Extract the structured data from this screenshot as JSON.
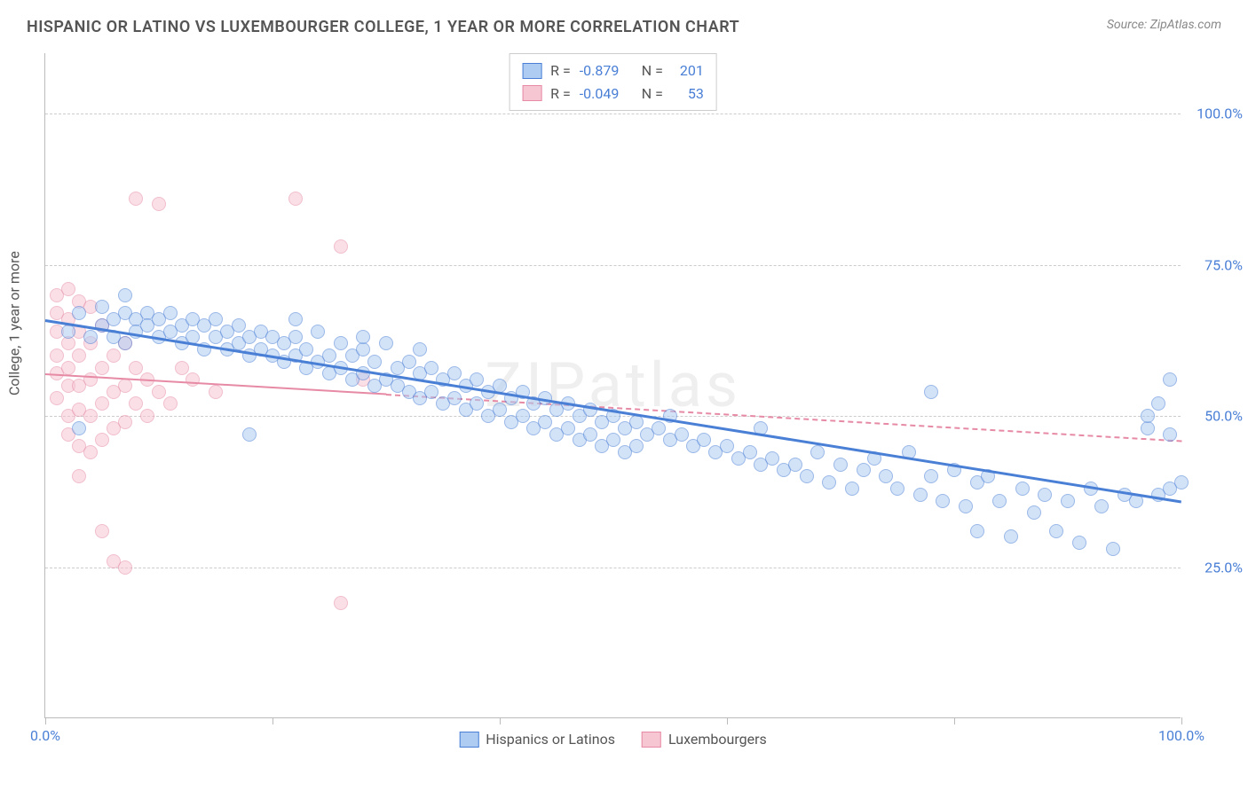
{
  "title": "HISPANIC OR LATINO VS LUXEMBOURGER COLLEGE, 1 YEAR OR MORE CORRELATION CHART",
  "source": "Source: ZipAtlas.com",
  "watermark": "ZIPatlas",
  "ylabel": "College, 1 year or more",
  "chart": {
    "type": "scatter",
    "xlim": [
      0,
      100
    ],
    "ylim": [
      0,
      110
    ],
    "yticks": [
      {
        "v": 25,
        "label": "25.0%"
      },
      {
        "v": 50,
        "label": "50.0%"
      },
      {
        "v": 75,
        "label": "75.0%"
      },
      {
        "v": 100,
        "label": "100.0%"
      }
    ],
    "xticks": [
      0,
      20,
      40,
      60,
      80,
      100
    ],
    "xaxis_labels": [
      {
        "v": 0,
        "label": "0.0%"
      },
      {
        "v": 100,
        "label": "100.0%"
      }
    ],
    "grid_color": "#cccccc",
    "background_color": "#ffffff",
    "point_radius": 8,
    "point_opacity": 0.55,
    "series": [
      {
        "name": "Hispanics or Latinos",
        "color_fill": "#aeccf2",
        "color_stroke": "#4a7fd6",
        "R": "-0.879",
        "N": "201",
        "trend": {
          "x1": 0,
          "y1": 66,
          "x2": 100,
          "y2": 36,
          "solid_until_x": 100,
          "width": 3
        },
        "points": [
          [
            2,
            64
          ],
          [
            3,
            67
          ],
          [
            4,
            63
          ],
          [
            5,
            68
          ],
          [
            5,
            65
          ],
          [
            6,
            66
          ],
          [
            6,
            63
          ],
          [
            7,
            67
          ],
          [
            7,
            62
          ],
          [
            8,
            66
          ],
          [
            8,
            64
          ],
          [
            9,
            67
          ],
          [
            9,
            65
          ],
          [
            10,
            66
          ],
          [
            10,
            63
          ],
          [
            11,
            67
          ],
          [
            11,
            64
          ],
          [
            12,
            65
          ],
          [
            12,
            62
          ],
          [
            13,
            66
          ],
          [
            13,
            63
          ],
          [
            14,
            65
          ],
          [
            14,
            61
          ],
          [
            15,
            66
          ],
          [
            15,
            63
          ],
          [
            16,
            64
          ],
          [
            16,
            61
          ],
          [
            17,
            65
          ],
          [
            17,
            62
          ],
          [
            18,
            63
          ],
          [
            18,
            60
          ],
          [
            19,
            64
          ],
          [
            19,
            61
          ],
          [
            20,
            63
          ],
          [
            20,
            60
          ],
          [
            21,
            62
          ],
          [
            21,
            59
          ],
          [
            22,
            63
          ],
          [
            22,
            60
          ],
          [
            23,
            61
          ],
          [
            23,
            58
          ],
          [
            24,
            64
          ],
          [
            24,
            59
          ],
          [
            25,
            60
          ],
          [
            25,
            57
          ],
          [
            26,
            62
          ],
          [
            26,
            58
          ],
          [
            27,
            60
          ],
          [
            27,
            56
          ],
          [
            28,
            61
          ],
          [
            28,
            57
          ],
          [
            29,
            59
          ],
          [
            29,
            55
          ],
          [
            30,
            62
          ],
          [
            30,
            56
          ],
          [
            31,
            58
          ],
          [
            31,
            55
          ],
          [
            32,
            59
          ],
          [
            32,
            54
          ],
          [
            33,
            57
          ],
          [
            33,
            53
          ],
          [
            34,
            58
          ],
          [
            34,
            54
          ],
          [
            35,
            56
          ],
          [
            35,
            52
          ],
          [
            36,
            57
          ],
          [
            36,
            53
          ],
          [
            37,
            55
          ],
          [
            37,
            51
          ],
          [
            38,
            56
          ],
          [
            38,
            52
          ],
          [
            39,
            54
          ],
          [
            39,
            50
          ],
          [
            40,
            55
          ],
          [
            40,
            51
          ],
          [
            41,
            53
          ],
          [
            41,
            49
          ],
          [
            42,
            54
          ],
          [
            42,
            50
          ],
          [
            43,
            52
          ],
          [
            43,
            48
          ],
          [
            44,
            53
          ],
          [
            44,
            49
          ],
          [
            45,
            51
          ],
          [
            45,
            47
          ],
          [
            46,
            52
          ],
          [
            46,
            48
          ],
          [
            47,
            50
          ],
          [
            47,
            46
          ],
          [
            48,
            51
          ],
          [
            48,
            47
          ],
          [
            49,
            49
          ],
          [
            49,
            45
          ],
          [
            50,
            50
          ],
          [
            50,
            46
          ],
          [
            51,
            48
          ],
          [
            51,
            44
          ],
          [
            52,
            49
          ],
          [
            52,
            45
          ],
          [
            53,
            47
          ],
          [
            54,
            48
          ],
          [
            55,
            46
          ],
          [
            56,
            47
          ],
          [
            57,
            45
          ],
          [
            58,
            46
          ],
          [
            59,
            44
          ],
          [
            60,
            45
          ],
          [
            61,
            43
          ],
          [
            62,
            44
          ],
          [
            63,
            42
          ],
          [
            64,
            43
          ],
          [
            65,
            41
          ],
          [
            66,
            42
          ],
          [
            67,
            40
          ],
          [
            68,
            44
          ],
          [
            69,
            39
          ],
          [
            70,
            42
          ],
          [
            71,
            38
          ],
          [
            72,
            41
          ],
          [
            73,
            43
          ],
          [
            74,
            40
          ],
          [
            75,
            38
          ],
          [
            76,
            44
          ],
          [
            77,
            37
          ],
          [
            78,
            40
          ],
          [
            79,
            36
          ],
          [
            80,
            41
          ],
          [
            81,
            35
          ],
          [
            82,
            39
          ],
          [
            83,
            40
          ],
          [
            84,
            36
          ],
          [
            85,
            30
          ],
          [
            86,
            38
          ],
          [
            87,
            34
          ],
          [
            88,
            37
          ],
          [
            89,
            31
          ],
          [
            90,
            36
          ],
          [
            91,
            29
          ],
          [
            92,
            38
          ],
          [
            93,
            35
          ],
          [
            94,
            28
          ],
          [
            95,
            37
          ],
          [
            96,
            36
          ],
          [
            97,
            48
          ],
          [
            97,
            50
          ],
          [
            98,
            37
          ],
          [
            98,
            52
          ],
          [
            99,
            38
          ],
          [
            99,
            47
          ],
          [
            99,
            56
          ],
          [
            100,
            39
          ],
          [
            3,
            48
          ],
          [
            7,
            70
          ],
          [
            78,
            54
          ],
          [
            63,
            48
          ],
          [
            55,
            50
          ],
          [
            22,
            66
          ],
          [
            28,
            63
          ],
          [
            33,
            61
          ],
          [
            18,
            47
          ],
          [
            82,
            31
          ]
        ]
      },
      {
        "name": "Luxembourgers",
        "color_fill": "#f7c6d3",
        "color_stroke": "#e68aa5",
        "R": "-0.049",
        "N": "53",
        "trend": {
          "x1": 0,
          "y1": 57,
          "x2": 100,
          "y2": 46,
          "solid_until_x": 30,
          "width": 2
        },
        "points": [
          [
            1,
            70
          ],
          [
            1,
            67
          ],
          [
            1,
            64
          ],
          [
            1,
            60
          ],
          [
            1,
            57
          ],
          [
            1,
            53
          ],
          [
            2,
            71
          ],
          [
            2,
            66
          ],
          [
            2,
            62
          ],
          [
            2,
            58
          ],
          [
            2,
            55
          ],
          [
            2,
            50
          ],
          [
            2,
            47
          ],
          [
            3,
            69
          ],
          [
            3,
            64
          ],
          [
            3,
            60
          ],
          [
            3,
            55
          ],
          [
            3,
            51
          ],
          [
            3,
            45
          ],
          [
            3,
            40
          ],
          [
            4,
            68
          ],
          [
            4,
            62
          ],
          [
            4,
            56
          ],
          [
            4,
            50
          ],
          [
            4,
            44
          ],
          [
            5,
            65
          ],
          [
            5,
            58
          ],
          [
            5,
            52
          ],
          [
            5,
            46
          ],
          [
            5,
            31
          ],
          [
            6,
            60
          ],
          [
            6,
            54
          ],
          [
            6,
            48
          ],
          [
            6,
            26
          ],
          [
            7,
            62
          ],
          [
            7,
            55
          ],
          [
            7,
            49
          ],
          [
            7,
            25
          ],
          [
            8,
            58
          ],
          [
            8,
            52
          ],
          [
            8,
            86
          ],
          [
            9,
            56
          ],
          [
            9,
            50
          ],
          [
            10,
            85
          ],
          [
            10,
            54
          ],
          [
            11,
            52
          ],
          [
            12,
            58
          ],
          [
            13,
            56
          ],
          [
            15,
            54
          ],
          [
            22,
            86
          ],
          [
            26,
            78
          ],
          [
            26,
            19
          ],
          [
            28,
            56
          ]
        ]
      }
    ]
  },
  "bottom_legend": [
    {
      "label": "Hispanics or Latinos",
      "fill": "#aeccf2",
      "stroke": "#4a7fd6"
    },
    {
      "label": "Luxembourgers",
      "fill": "#f7c6d3",
      "stroke": "#e68aa5"
    }
  ]
}
